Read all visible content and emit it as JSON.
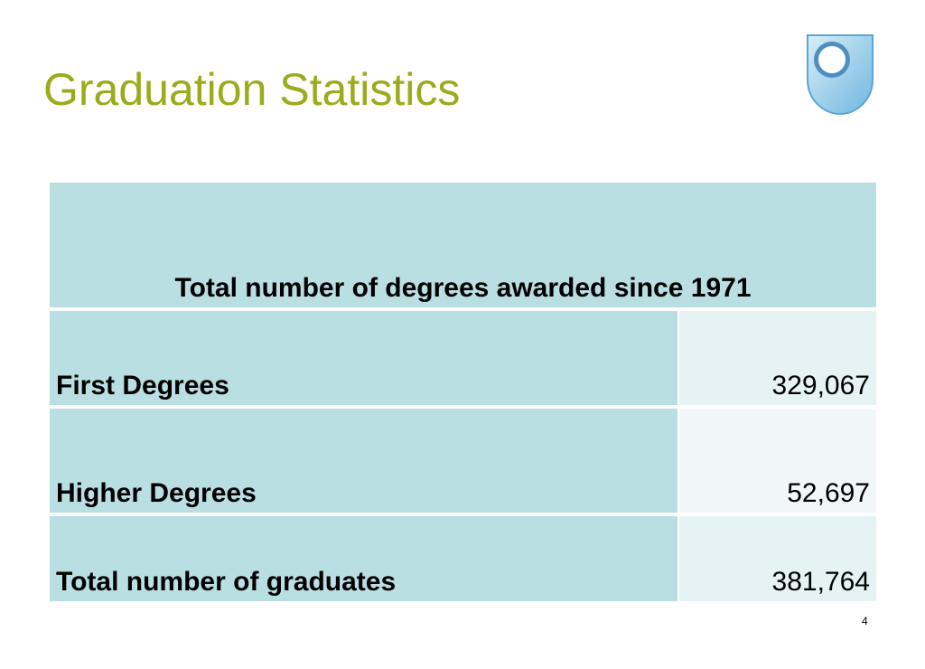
{
  "header": {
    "title": "Graduation Statistics"
  },
  "table": {
    "header": "Total number of degrees awarded since 1971",
    "rows": [
      [
        "First Degrees",
        "329,067"
      ],
      [
        "Higher Degrees",
        "52,697"
      ],
      [
        "Total number of graduates",
        "381,764"
      ]
    ]
  },
  "footer": {
    "page": "4"
  }
}
